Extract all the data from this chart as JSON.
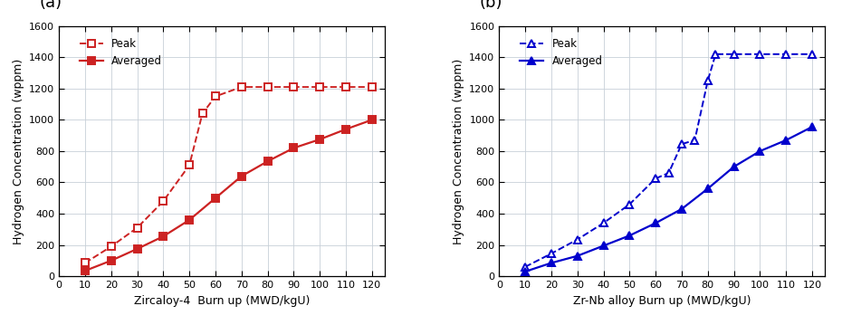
{
  "panel_a": {
    "label": "(a)",
    "xlabel": "Zircaloy-4  Burn up (MWD/kgU)",
    "ylabel": "Hydrogen Concentration (wppm)",
    "color": "#CC2222",
    "peak_x": [
      10,
      20,
      30,
      40,
      50,
      55,
      60,
      70,
      80,
      90,
      100,
      110,
      120
    ],
    "peak_y": [
      85,
      190,
      310,
      480,
      710,
      1040,
      1150,
      1210,
      1210,
      1210,
      1210,
      1210,
      1210
    ],
    "avg_x": [
      10,
      20,
      30,
      40,
      50,
      60,
      70,
      80,
      90,
      100,
      110,
      120
    ],
    "avg_y": [
      35,
      100,
      175,
      255,
      360,
      500,
      640,
      735,
      820,
      875,
      940,
      1000
    ]
  },
  "panel_b": {
    "label": "(b)",
    "xlabel": "Zr-Nb alloy Burn up (MWD/kgU)",
    "ylabel": "Hydrogen Concentration (wppm)",
    "color": "#0000CC",
    "peak_x": [
      10,
      20,
      30,
      40,
      50,
      60,
      65,
      70,
      75,
      80,
      83,
      90,
      100,
      110,
      120
    ],
    "peak_y": [
      60,
      145,
      235,
      340,
      460,
      625,
      660,
      845,
      870,
      1250,
      1420,
      1420,
      1420,
      1420,
      1420
    ],
    "avg_x": [
      10,
      20,
      30,
      40,
      50,
      60,
      70,
      80,
      90,
      100,
      110,
      120
    ],
    "avg_y": [
      30,
      85,
      130,
      195,
      260,
      340,
      430,
      560,
      700,
      800,
      870,
      955
    ]
  },
  "ylim": [
    0,
    1600
  ],
  "xlim": [
    0,
    125
  ],
  "yticks": [
    0,
    200,
    400,
    600,
    800,
    1000,
    1200,
    1400,
    1600
  ],
  "xticks": [
    0,
    10,
    20,
    30,
    40,
    50,
    60,
    70,
    80,
    90,
    100,
    110,
    120
  ],
  "grid_color": "#c8d0d8",
  "legend_peak": "Peak",
  "legend_avg": "Averaged",
  "figsize": [
    9.3,
    3.59
  ],
  "dpi": 100
}
